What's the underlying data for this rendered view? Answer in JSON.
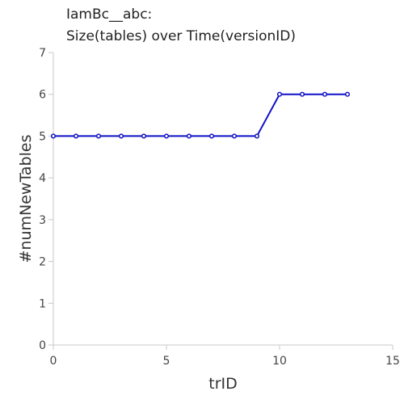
{
  "chart_data": {
    "type": "line",
    "title_lines": [
      "IamBc__abc:",
      "Size(tables) over Time(versionID)"
    ],
    "xlabel": "trID",
    "ylabel": "#numNewTables",
    "xlim": [
      0,
      15
    ],
    "ylim": [
      0,
      7
    ],
    "x_ticks": [
      0,
      5,
      10,
      15
    ],
    "y_ticks": [
      0,
      1,
      2,
      3,
      4,
      5,
      6,
      7
    ],
    "grid": false,
    "series": [
      {
        "x": [
          0,
          1,
          2,
          3,
          4,
          5,
          6,
          7,
          8,
          9,
          10,
          11,
          12,
          13
        ],
        "values": [
          5,
          5,
          5,
          5,
          5,
          5,
          5,
          5,
          5,
          5,
          6,
          6,
          6,
          6
        ],
        "color": "#1010c8"
      }
    ]
  }
}
